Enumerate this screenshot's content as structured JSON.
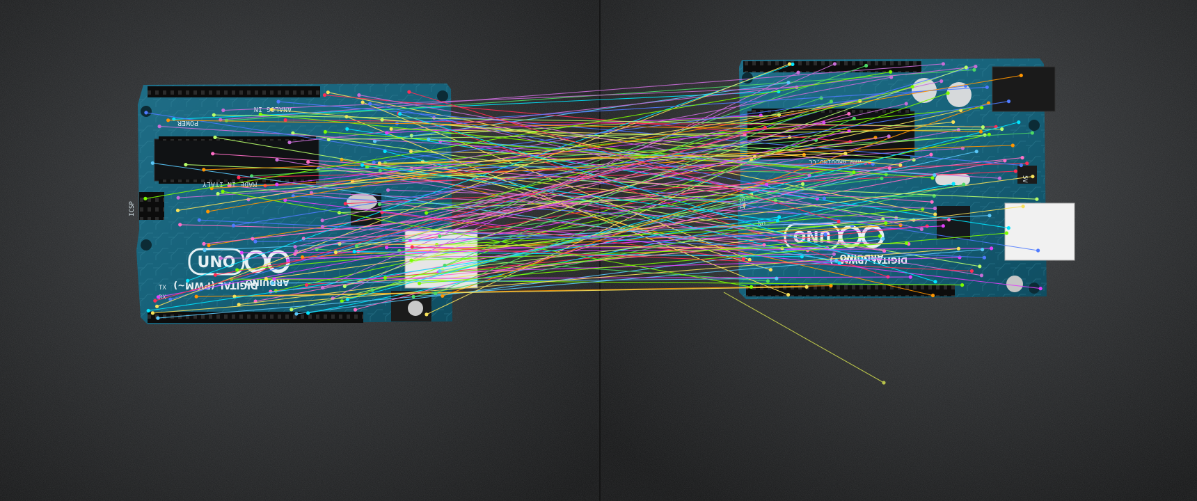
{
  "boards": {
    "left": {
      "model_text": "UNO",
      "brand_text": "ARDUINO",
      "digital_text": "DIGITAL (PWM~)",
      "made_in_text": "MADE IN ITALY",
      "power_text": "POWER",
      "analog_text": "ANALOG IN",
      "icsp_text": "ICSP",
      "tx_text": "TX",
      "rx_text": "RX"
    },
    "right": {
      "model_text": "UNO",
      "brand_text": "ARDUINO",
      "digital_text": "DIGITAL (PWM~)",
      "www_text": "WWW.ARDUINO.CC",
      "icsp_text": "ICSP",
      "on_text": "ON",
      "led_text": "L",
      "voltage_text": "5V"
    }
  },
  "matches": {
    "count": 150,
    "palette": [
      "#ff2d55",
      "#4cd964",
      "#5ac8fa",
      "#c86dd7",
      "#f7e15a",
      "#ff6ec7",
      "#7cfc00",
      "#4f7bff",
      "#ff9500",
      "#00e5ff",
      "#b8ff6a",
      "#e040fb"
    ]
  }
}
